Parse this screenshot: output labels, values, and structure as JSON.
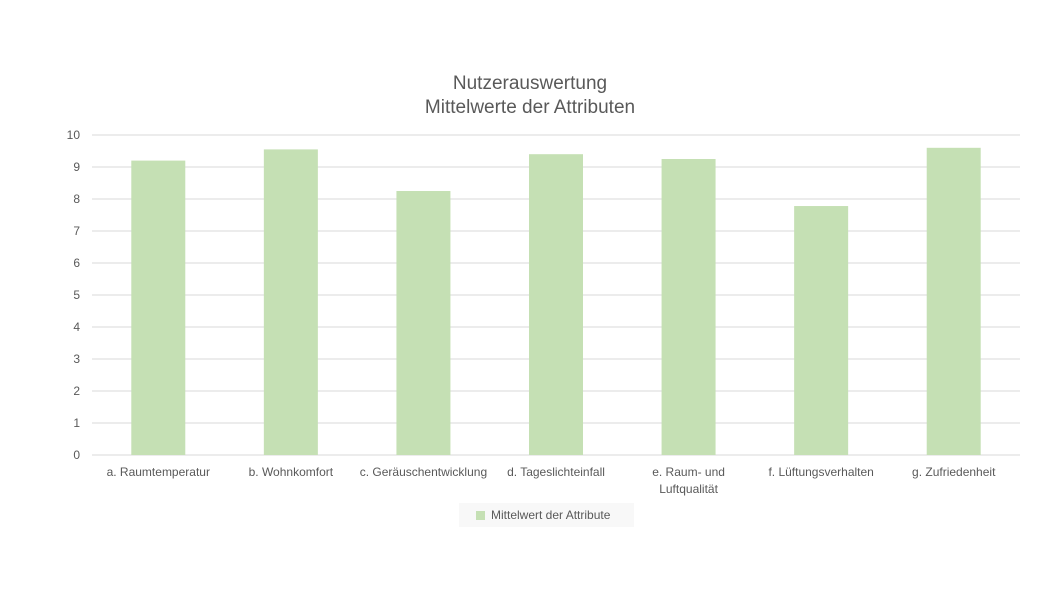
{
  "chart_data": {
    "type": "bar",
    "title": "Nutzerauswertung",
    "subtitle": "Mittelwerte der Attributen",
    "categories": [
      [
        "a. Raumtemperatur"
      ],
      [
        "b. Wohnkomfort"
      ],
      [
        "c. Geräuschentwicklung"
      ],
      [
        "d. Tageslichteinfall"
      ],
      [
        "e. Raum- und",
        "Luftqualität"
      ],
      [
        "f. Lüftungsverhalten"
      ],
      [
        "g. Zufriedenheit"
      ]
    ],
    "series": [
      {
        "name": "Mittelwert der Attribute",
        "color": "#c5e0b4",
        "values": [
          9.2,
          9.55,
          8.25,
          9.4,
          9.25,
          7.78,
          9.6
        ]
      }
    ],
    "ylim": [
      0,
      10
    ],
    "yticks": [
      0,
      1,
      2,
      3,
      4,
      5,
      6,
      7,
      8,
      9,
      10
    ],
    "grid": true,
    "legend_position": "bottom",
    "gridline_color": "#d9d9d9",
    "text_color": "#595959"
  }
}
